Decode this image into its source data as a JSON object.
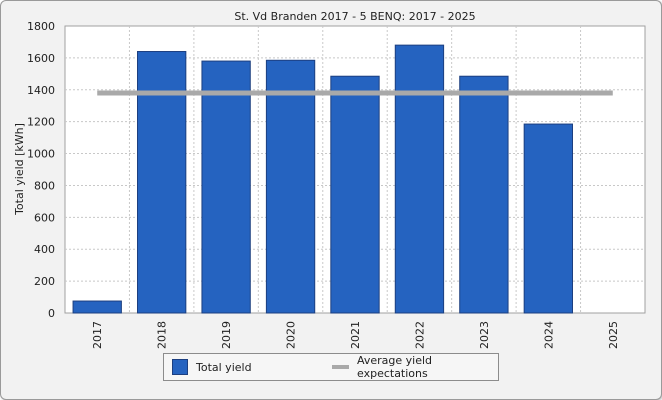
{
  "chart_data": {
    "type": "bar",
    "title": "St. Vd Branden 2017 - 5 BENQ: 2017 - 2025",
    "xlabel": "",
    "ylabel": "Total yield [kWh]",
    "categories": [
      "2017",
      "2018",
      "2019",
      "2020",
      "2021",
      "2022",
      "2023",
      "2024",
      "2025"
    ],
    "series": [
      {
        "name": "Total yield",
        "type": "bar",
        "color": "#2563c0",
        "values": [
          75,
          1640,
          1580,
          1585,
          1485,
          1680,
          1485,
          1185,
          null
        ]
      },
      {
        "name": "Average yield expectations",
        "type": "line",
        "color": "#a9a9a9",
        "value": 1380
      }
    ],
    "ylim": [
      0,
      1800
    ],
    "yticks": [
      0,
      200,
      400,
      600,
      800,
      1000,
      1200,
      1400,
      1600,
      1800
    ],
    "grid": true,
    "legend_position": "bottom"
  }
}
